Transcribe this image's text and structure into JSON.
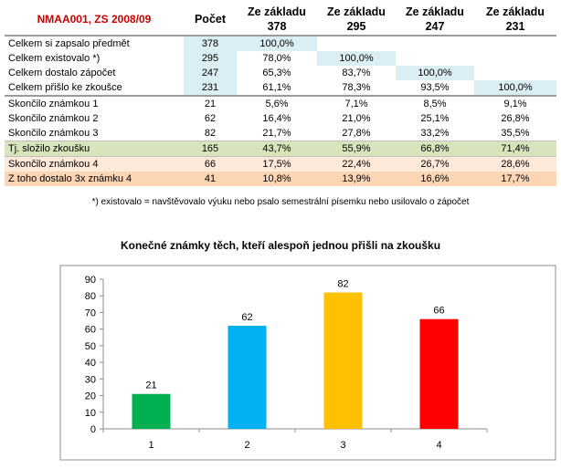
{
  "table": {
    "title": "NMAA001, ZS 2008/09",
    "columns": [
      {
        "line1": "Počet",
        "line2": ""
      },
      {
        "line1": "Ze základu",
        "line2": "378"
      },
      {
        "line1": "Ze základu",
        "line2": "295"
      },
      {
        "line1": "Ze základu",
        "line2": "247"
      },
      {
        "line1": "Ze základu",
        "line2": "231"
      }
    ],
    "rows": [
      {
        "label": "Celkem si zapsalo předmět",
        "values": [
          "378",
          "100,0%",
          "",
          "",
          ""
        ]
      },
      {
        "label": "Celkem existovalo  *)",
        "values": [
          "295",
          "78,0%",
          "100,0%",
          "",
          ""
        ]
      },
      {
        "label": "Celkem dostalo zápočet",
        "values": [
          "247",
          "65,3%",
          "83,7%",
          "100,0%",
          ""
        ]
      },
      {
        "label": "Celkem přišlo ke zkoušce",
        "values": [
          "231",
          "61,1%",
          "78,3%",
          "93,5%",
          "100,0%"
        ]
      },
      {
        "label": "Skončilo známkou 1",
        "values": [
          "21",
          "5,6%",
          "7,1%",
          "8,5%",
          "9,1%"
        ]
      },
      {
        "label": "Skončilo známkou 2",
        "values": [
          "62",
          "16,4%",
          "21,0%",
          "25,1%",
          "26,8%"
        ]
      },
      {
        "label": "Skončilo známkou 3",
        "values": [
          "82",
          "21,7%",
          "27,8%",
          "33,2%",
          "35,5%"
        ]
      },
      {
        "label": "Tj. složilo zkoušku",
        "values": [
          "165",
          "43,7%",
          "55,9%",
          "66,8%",
          "71,4%"
        ]
      },
      {
        "label": "Skončilo známkou 4",
        "values": [
          "66",
          "17,5%",
          "22,4%",
          "26,7%",
          "28,6%"
        ]
      },
      {
        "label": "Z toho dostalo 3x známku 4",
        "values": [
          "41",
          "10,8%",
          "13,9%",
          "16,6%",
          "17,7%"
        ]
      }
    ]
  },
  "footnote": "*) existovalo = navštěvovalo výuku nebo psalo semestrální písemku nebo usilovalo o zápočet",
  "chart_data": {
    "type": "bar",
    "title": "Konečné známky těch, kteří alespoň jednou přišli na zkoušku",
    "categories": [
      "1",
      "2",
      "3",
      "4"
    ],
    "values": [
      21,
      62,
      82,
      66
    ],
    "colors": [
      "#00b050",
      "#00b0f0",
      "#ffc000",
      "#ff0000"
    ],
    "ylim": [
      0,
      90
    ],
    "yticks": [
      0,
      10,
      20,
      30,
      40,
      50,
      60,
      70,
      80,
      90
    ],
    "grid": false,
    "legend": "none",
    "data_labels": true
  }
}
